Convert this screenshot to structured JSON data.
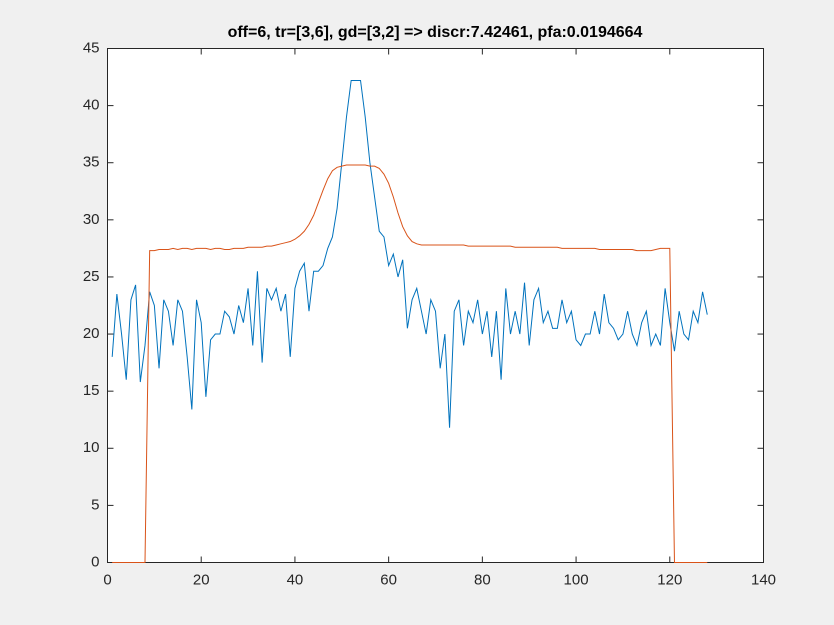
{
  "chart_data": {
    "type": "line",
    "title": "off=6, tr=[3,6], gd=[3,2] => discr:7.42461, pfa:0.0194664",
    "x": [
      1,
      2,
      3,
      4,
      5,
      6,
      7,
      8,
      9,
      10,
      11,
      12,
      13,
      14,
      15,
      16,
      17,
      18,
      19,
      20,
      21,
      22,
      23,
      24,
      25,
      26,
      27,
      28,
      29,
      30,
      31,
      32,
      33,
      34,
      35,
      36,
      37,
      38,
      39,
      40,
      41,
      42,
      43,
      44,
      45,
      46,
      47,
      48,
      49,
      50,
      51,
      52,
      53,
      54,
      55,
      56,
      57,
      58,
      59,
      60,
      61,
      62,
      63,
      64,
      65,
      66,
      67,
      68,
      69,
      70,
      71,
      72,
      73,
      74,
      75,
      76,
      77,
      78,
      79,
      80,
      81,
      82,
      83,
      84,
      85,
      86,
      87,
      88,
      89,
      90,
      91,
      92,
      93,
      94,
      95,
      96,
      97,
      98,
      99,
      100,
      101,
      102,
      103,
      104,
      105,
      106,
      107,
      108,
      109,
      110,
      111,
      112,
      113,
      114,
      115,
      116,
      117,
      118,
      119,
      120,
      121,
      122,
      123,
      124,
      125,
      126,
      127,
      128
    ],
    "series": [
      {
        "color": "#0072bd",
        "values": [
          18,
          23.5,
          20,
          16,
          23,
          24.3,
          15.8,
          19,
          23.7,
          22.5,
          17,
          23,
          22,
          19,
          23,
          22,
          18,
          13.4,
          23,
          21,
          14.5,
          19.5,
          20,
          20,
          22,
          21.5,
          20,
          22.5,
          21,
          24,
          19,
          25.5,
          17.5,
          24,
          23,
          24,
          22,
          23.5,
          18,
          24,
          25.5,
          26.2,
          22,
          25.5,
          25.5,
          26,
          27.5,
          28.5,
          31,
          35,
          39,
          42.2,
          42.2,
          42.2,
          39,
          35,
          32,
          29,
          28.5,
          26,
          27,
          25,
          26.5,
          20.5,
          23,
          24,
          22,
          20,
          23,
          22,
          17,
          20,
          11.8,
          22,
          23,
          19,
          22,
          21,
          23,
          20,
          22,
          18,
          22,
          16,
          24,
          20,
          22,
          20,
          24.5,
          19,
          23,
          24,
          21,
          22,
          20.5,
          20.5,
          23,
          21,
          22,
          19.5,
          19,
          20,
          20,
          22,
          20,
          23.5,
          21,
          20.5,
          19.5,
          20,
          22,
          20,
          19,
          21,
          22,
          19,
          20,
          19,
          24,
          21,
          18.5,
          22,
          20,
          19.5,
          22,
          21,
          23.7,
          21.7
        ]
      },
      {
        "color": "#d95319",
        "values": [
          0,
          0,
          0,
          0,
          0,
          0,
          0,
          0,
          27.3,
          27.3,
          27.4,
          27.4,
          27.4,
          27.5,
          27.4,
          27.5,
          27.5,
          27.4,
          27.5,
          27.5,
          27.5,
          27.4,
          27.5,
          27.5,
          27.4,
          27.4,
          27.5,
          27.5,
          27.5,
          27.6,
          27.6,
          27.6,
          27.6,
          27.7,
          27.7,
          27.8,
          27.9,
          28.0,
          28.1,
          28.3,
          28.6,
          29.0,
          29.6,
          30.4,
          31.5,
          32.6,
          33.6,
          34.3,
          34.6,
          34.7,
          34.8,
          34.8,
          34.8,
          34.8,
          34.8,
          34.7,
          34.7,
          34.5,
          34.0,
          33.2,
          32.0,
          30.6,
          29.4,
          28.6,
          28.1,
          27.9,
          27.8,
          27.8,
          27.8,
          27.8,
          27.8,
          27.8,
          27.8,
          27.8,
          27.8,
          27.8,
          27.7,
          27.7,
          27.7,
          27.7,
          27.7,
          27.7,
          27.7,
          27.7,
          27.7,
          27.7,
          27.6,
          27.6,
          27.6,
          27.6,
          27.6,
          27.6,
          27.6,
          27.6,
          27.6,
          27.6,
          27.5,
          27.5,
          27.5,
          27.5,
          27.5,
          27.5,
          27.5,
          27.5,
          27.4,
          27.4,
          27.4,
          27.4,
          27.4,
          27.4,
          27.4,
          27.4,
          27.3,
          27.3,
          27.3,
          27.3,
          27.4,
          27.5,
          27.5,
          27.5,
          0,
          0,
          0,
          0,
          0,
          0,
          0,
          0
        ]
      }
    ],
    "xlim": [
      0,
      140
    ],
    "xticks": [
      0,
      20,
      40,
      60,
      80,
      100,
      120,
      140
    ],
    "ylim": [
      0,
      45
    ],
    "yticks": [
      0,
      5,
      10,
      15,
      20,
      25,
      30,
      35,
      40,
      45
    ]
  }
}
